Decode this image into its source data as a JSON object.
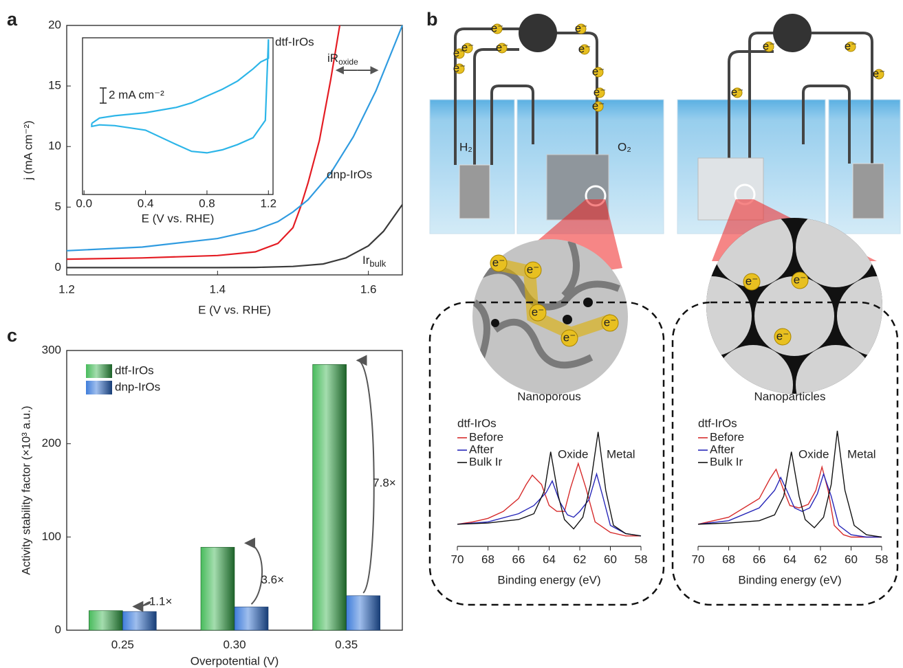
{
  "panel_labels": [
    "a",
    "b",
    "c"
  ],
  "schematic": {
    "electron": "e⁻",
    "left_gas": "H₂",
    "right_gas": "O₂"
  },
  "chart_data": [
    {
      "type": "line",
      "x_label": "E (V vs. RHE)",
      "y_label": "j (mA cm⁻²)",
      "xlim": [
        1.2,
        1.645
      ],
      "ylim": [
        -0.6,
        20
      ],
      "xticks": [
        1.2,
        1.4,
        1.6
      ],
      "yticks": [
        0,
        5,
        10,
        15,
        20
      ],
      "series": [
        {
          "name": "dtf-IrOs",
          "color": "#e41c23",
          "x": [
            1.2,
            1.3,
            1.4,
            1.45,
            1.48,
            1.5,
            1.51,
            1.52,
            1.535,
            1.55,
            1.562
          ],
          "values": [
            0.7,
            0.8,
            1.0,
            1.3,
            2.0,
            3.3,
            5.0,
            7.0,
            10.5,
            15.5,
            20
          ]
        },
        {
          "name": "dnp-IrOs",
          "color": "#2f9be0",
          "x": [
            1.2,
            1.3,
            1.4,
            1.45,
            1.48,
            1.5,
            1.52,
            1.55,
            1.58,
            1.61,
            1.645
          ],
          "values": [
            1.4,
            1.7,
            2.4,
            3.1,
            3.8,
            4.6,
            5.6,
            7.8,
            10.8,
            14.6,
            20
          ]
        },
        {
          "name": "Ir",
          "name_sub": "bulk",
          "color": "#3a3a3a",
          "x": [
            1.2,
            1.4,
            1.45,
            1.5,
            1.54,
            1.57,
            1.6,
            1.62,
            1.645
          ],
          "values": [
            0,
            0,
            0.02,
            0.1,
            0.3,
            0.8,
            1.8,
            3.0,
            5.2
          ]
        }
      ],
      "annotation": {
        "text": "iR",
        "sub": "oxide"
      }
    },
    {
      "type": "line",
      "x_label": "E (V vs. RHE)",
      "xlim": [
        -0.01,
        1.23
      ],
      "ylim": [
        0,
        20.7
      ],
      "xticks": [
        {
          "value": 0,
          "label": "0.0"
        },
        0.4,
        0.8,
        1.2
      ],
      "scale_bar": {
        "value": 2,
        "label": "2 mA cm⁻²"
      },
      "series": [
        {
          "color": "#2cb5e8",
          "x": [
            0.05,
            0.1,
            0.2,
            0.4,
            0.6,
            0.7,
            0.8,
            0.9,
            1.0,
            1.1,
            1.15,
            1.2,
            1.2,
            1.18,
            1.1,
            1.0,
            0.9,
            0.8,
            0.7,
            0.6,
            0.4,
            0.2,
            0.1,
            0.05,
            0.05
          ],
          "values": [
            9.4,
            10.1,
            10.4,
            10.8,
            11.5,
            12.1,
            13.0,
            13.9,
            15.0,
            16.6,
            17.5,
            18.0,
            20.5,
            9.8,
            7.5,
            6.6,
            5.9,
            5.5,
            5.7,
            6.6,
            8.5,
            9.1,
            9.2,
            9.0,
            9.4
          ]
        }
      ]
    },
    {
      "type": "bar",
      "x_label": "Overpotential (V)",
      "y_label": "Activity stability factor (×10³ a.u.)",
      "categories": [
        "0.25",
        "0.30",
        "0.35"
      ],
      "series": [
        {
          "name": "dtf-IrOs",
          "color": "#34b34a",
          "values": [
            21,
            89,
            285
          ]
        },
        {
          "name": "dnp-IrOs",
          "color": "#2a6fd6",
          "values": [
            20,
            25,
            37
          ]
        }
      ],
      "ylim": [
        0,
        300
      ],
      "yticks": [
        0,
        100,
        200,
        300
      ],
      "annotations": [
        "1.1×",
        "3.6×",
        "7.8×"
      ],
      "legend": "upper left"
    },
    {
      "type": "line",
      "title": "Nanoporous",
      "legend_title": "dtf-IrOs",
      "x_label": "Binding energy (eV)",
      "xlim": [
        70,
        58
      ],
      "ylim": [
        0,
        1
      ],
      "xticks": [
        70,
        68,
        66,
        64,
        62,
        60,
        58
      ],
      "annotations": [
        {
          "text": "Oxide",
          "color": "#e41c23"
        },
        {
          "text": "Metal",
          "color": "#000000"
        }
      ],
      "series": [
        {
          "name": "Before",
          "color": "#d62b2b",
          "x": [
            70,
            69,
            68,
            67,
            66,
            65.5,
            65.1,
            64.5,
            64,
            63.5,
            63,
            62.6,
            62.1,
            61.6,
            61,
            60,
            59,
            58
          ],
          "values": [
            0.16,
            0.18,
            0.21,
            0.27,
            0.38,
            0.5,
            0.58,
            0.5,
            0.32,
            0.27,
            0.27,
            0.47,
            0.68,
            0.47,
            0.18,
            0.09,
            0.06,
            0.06
          ]
        },
        {
          "name": "After",
          "color": "#2626b8",
          "x": [
            70,
            68,
            66,
            65,
            64.2,
            63.8,
            63.3,
            62.8,
            62.4,
            62,
            61.4,
            60.9,
            60.5,
            60,
            59,
            58
          ],
          "values": [
            0.16,
            0.18,
            0.25,
            0.32,
            0.43,
            0.53,
            0.35,
            0.24,
            0.22,
            0.27,
            0.37,
            0.59,
            0.4,
            0.15,
            0.08,
            0.06
          ]
        },
        {
          "name": "Bulk Ir",
          "color": "#111111",
          "x": [
            70,
            68,
            66,
            65,
            64.3,
            63.9,
            63.4,
            63,
            62.4,
            61.8,
            61.3,
            60.8,
            60.3,
            59.8,
            59,
            58
          ],
          "values": [
            0.16,
            0.17,
            0.2,
            0.25,
            0.45,
            0.78,
            0.4,
            0.2,
            0.12,
            0.22,
            0.5,
            0.95,
            0.45,
            0.15,
            0.08,
            0.06
          ]
        }
      ]
    },
    {
      "type": "line",
      "title": "Nanoparticles",
      "legend_title": "dtf-IrOs",
      "x_label": "Binding energy (eV)",
      "xlim": [
        70,
        58
      ],
      "ylim": [
        0,
        1
      ],
      "xticks": [
        70,
        68,
        66,
        64,
        62,
        60,
        58
      ],
      "annotations": [
        {
          "text": "Oxide",
          "color": "#e41c23"
        },
        {
          "text": "Metal",
          "color": "#000000"
        }
      ],
      "series": [
        {
          "name": "Before",
          "color": "#d62b2b",
          "x": [
            70,
            68,
            66,
            65.3,
            64.9,
            64.4,
            64,
            63.4,
            62.8,
            62.3,
            61.9,
            61.5,
            61.1,
            60.5,
            60,
            59,
            58
          ],
          "values": [
            0.16,
            0.22,
            0.38,
            0.55,
            0.63,
            0.45,
            0.32,
            0.3,
            0.33,
            0.45,
            0.65,
            0.45,
            0.15,
            0.07,
            0.05,
            0.05,
            0.05
          ]
        },
        {
          "name": "After",
          "color": "#2626b8",
          "x": [
            70,
            68,
            66,
            65,
            64.6,
            64.2,
            63.7,
            63.2,
            62.7,
            62.2,
            61.8,
            61.3,
            60.8,
            60,
            59,
            58
          ],
          "values": [
            0.16,
            0.19,
            0.3,
            0.45,
            0.56,
            0.45,
            0.3,
            0.27,
            0.3,
            0.42,
            0.59,
            0.4,
            0.15,
            0.07,
            0.05,
            0.05
          ]
        },
        {
          "name": "Bulk Ir",
          "color": "#111111",
          "x": [
            70,
            68,
            66,
            65,
            64.4,
            63.9,
            63.4,
            63,
            62.4,
            61.8,
            61.3,
            60.9,
            60.4,
            59.8,
            59,
            58
          ],
          "values": [
            0.16,
            0.17,
            0.19,
            0.24,
            0.4,
            0.78,
            0.4,
            0.2,
            0.13,
            0.22,
            0.5,
            0.96,
            0.45,
            0.15,
            0.07,
            0.05
          ]
        }
      ]
    }
  ]
}
